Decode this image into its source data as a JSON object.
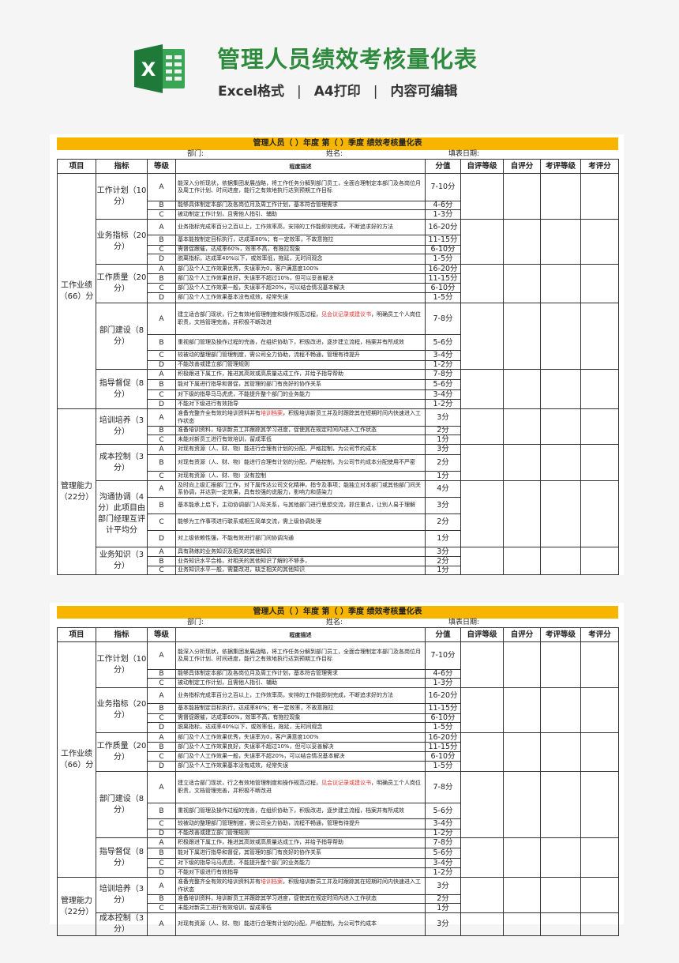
{
  "banner": {
    "logo": "Excel X logo",
    "title": "管理人员绩效考核量化表",
    "features": [
      "Excel格式",
      "A4打印",
      "内容可编辑"
    ],
    "separator": "|"
  },
  "sheet": {
    "heading": "管理人员（  ）年度 第（  ）季度 绩效考核量化表",
    "dept_label": "部门:",
    "name_label": "姓名:",
    "date_label": "填表日期:",
    "columns": [
      "项目",
      "指标",
      "等级",
      "程度描述",
      "分值",
      "自评等级",
      "自评分",
      "考评等级",
      "考评分"
    ],
    "highlight_color": "#e0322c",
    "accent_color": "#f7b500",
    "categories": [
      {
        "label": "工作业绩（66）分",
        "indicators": [
          {
            "label": "工作计划（10分）",
            "rows": [
              {
                "level": "A",
                "desc": "能深入分析现状，依据集团发展战略，将工作任务分解到部门员工，全面合理制定本部门及各岗位月及周工作计划、时间进度，能行之有效地执行达到预期工作目标",
                "score": "7-10分"
              },
              {
                "level": "B",
                "desc": "能够具体制定本部门及各岗位月及周工作计划，基本符合管理需求",
                "score": "4-6分"
              },
              {
                "level": "C",
                "desc": "被动制定工作计划，且需他人指引、辅助",
                "score": "1-3分"
              }
            ]
          },
          {
            "label": "业务指标（20分）",
            "rows": [
              {
                "level": "A",
                "desc": "业务指标完成率百分之百以上，工作效率高，安排的工作能即刻完成，不断追求好的方法",
                "score": "16-20分"
              },
              {
                "level": "B",
                "desc": "基本能按制定目标执行，达成率80%；有一定效率，不故意拖拉",
                "score": "11-15分"
              },
              {
                "level": "C",
                "desc": "需督促跟催，达成率60%，效率不高，有拖拉现象",
                "score": "6-10分"
              },
              {
                "level": "D",
                "desc": "脱离指标，达成率40%以下，或效率低，拖延，无时间观念",
                "score": "1-5分"
              }
            ]
          },
          {
            "label": "工作质量（20分）",
            "rows": [
              {
                "level": "A",
                "desc": "部门及个人工作效果优秀，失误率为0，客户满意度100%",
                "score": "16-20分"
              },
              {
                "level": "B",
                "desc": "部门及个人工作效果良好，失误率不超过10%，但可以妥善解决",
                "score": "11-15分"
              },
              {
                "level": "C",
                "desc": "部门及个人工作效果一般，失误率不超20%，可以结合情况基本解决",
                "score": "6-10分"
              },
              {
                "level": "D",
                "desc": "部门及个人工作效果基本没有成效，经常失误",
                "score": "1-5分"
              }
            ]
          },
          {
            "label": "部门建设（8分）",
            "rows": [
              {
                "level": "A",
                "desc": "建立适合部门现状，行之有效地管理制度和操作规范过程，见会议记录或建议书，明确员工个人岗位职责，文档管理完善，并积极不断改进",
                "highlight": "见会议记录或建议书",
                "score": "7-8分"
              },
              {
                "level": "B",
                "desc": "重视部门管理及操作过程的完善，在组织协助下，积极改进，逐步建立流程，档案并有所成效",
                "score": "5-6分"
              },
              {
                "level": "C",
                "desc": "较被动的整理部门管理制度，需公司全力协助，流程不畅通，管理有待提升",
                "score": "3-4分"
              },
              {
                "level": "D",
                "desc": "不能改善或建立部门管理规则",
                "score": "1-2分"
              }
            ]
          },
          {
            "label": "指导督促（8分）",
            "rows": [
              {
                "level": "A",
                "desc": "积极跟进下属工作，推进其高效或高质量达成工作，并给予指导帮助",
                "score": "7-8分"
              },
              {
                "level": "B",
                "desc": "能对下属进行指导和督促，其管理的部门有良好的协作关系",
                "score": "5-6分"
              },
              {
                "level": "C",
                "desc": "对下级的指导马马虎虎，不能提升整个部门的业务能力",
                "score": "3-4分"
              },
              {
                "level": "D",
                "desc": "不能对下级进行有效指导",
                "score": "1-2分"
              }
            ]
          }
        ]
      },
      {
        "label": "管理能力（22分）",
        "indicators": [
          {
            "label": "培训培养（3分）",
            "rows": [
              {
                "level": "A",
                "desc": "准备完整齐全有效的培训资料并有培训档案，积极培训新员工并及时跟踪其在短期时间内快速进入工作状态",
                "highlight": "培训档案",
                "score": "3分"
              },
              {
                "level": "B",
                "desc": "准备培训资料，培训新员工并跟踪其学习进度，促使其在规定时间内进入工作状态",
                "score": "2分"
              },
              {
                "level": "C",
                "desc": "未能对新员工进行有效培训，留成率低",
                "score": "1分"
              }
            ]
          },
          {
            "label": "成本控制（3分）",
            "rows": [
              {
                "level": "A",
                "desc": "对现有资源（人、财、物）能进行合理有计划的分配，严格控制，为公司节约成本",
                "score": "3分"
              },
              {
                "level": "B",
                "desc": "对现有资源（人、财、物）能进行合理有计划的分配，严格控制，为公司节约成本分配使用不严密",
                "score": "2分"
              },
              {
                "level": "C",
                "desc": "对现有资源（人、财、物）没有控制",
                "score": "1分"
              }
            ]
          },
          {
            "label": "沟通协调（4分）此项目由部门经理互评计平均分",
            "rows": [
              {
                "level": "A",
                "desc": "及时向上级汇报部门工作，对下属传达公司文化精神，指令及事项；能独立对本部门或其他部门间关系协调，并达到一定效果，具有较强的说服力，影响力和感染力",
                "score": "4分"
              },
              {
                "level": "B",
                "desc": "基本能承上启下，主动协调部门人际关系，与其他部门进行思想交流，抓住重点，让别人易于理解",
                "score": "3分"
              },
              {
                "level": "C",
                "desc": "能够为工作事项进行联系或相互简单交流，需上级协调处理",
                "score": "2分"
              },
              {
                "level": "D",
                "desc": "对上级依赖性强，不能有效进行部门间协调沟通",
                "score": "1分"
              }
            ]
          },
          {
            "label": "业务知识（3分）",
            "rows": [
              {
                "level": "A",
                "desc": "具有熟练的业务知识及相关的其他知识",
                "score": "3分"
              },
              {
                "level": "B",
                "desc": "业务知识水平合格，对相关的其他知识了解的不够多，",
                "score": "2分"
              },
              {
                "level": "C",
                "desc": "业务知识水平一般，需要改进，缺乏相关的其他知识",
                "score": "1分"
              }
            ]
          }
        ]
      }
    ]
  }
}
